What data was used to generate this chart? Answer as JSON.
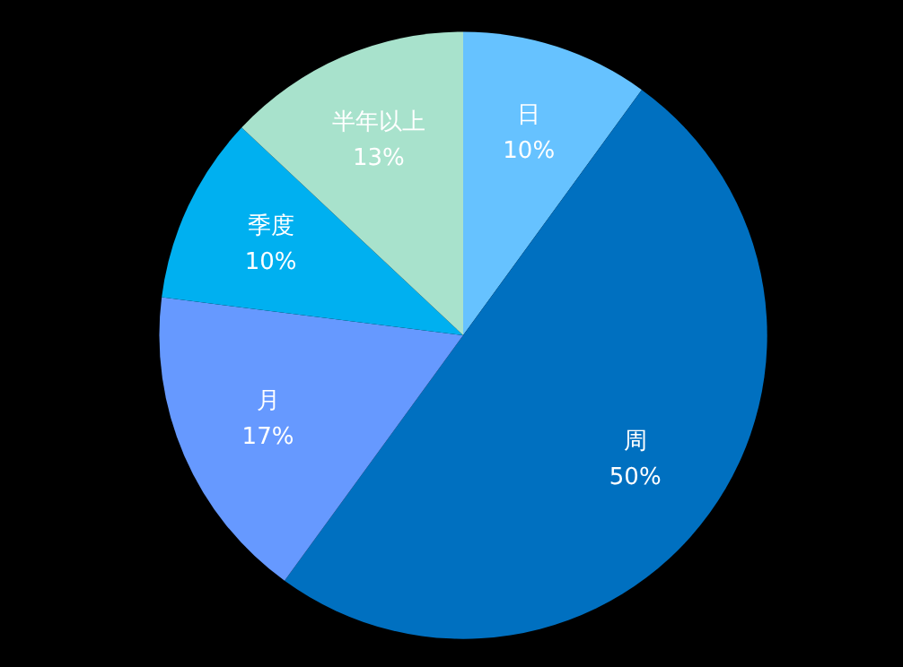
{
  "chart_data": {
    "type": "pie",
    "categories": [
      "日",
      "周",
      "月",
      "季度",
      "半年以上"
    ],
    "values": [
      10,
      50,
      17,
      10,
      13
    ],
    "value_labels": [
      "10%",
      "50%",
      "17%",
      "10%",
      "13%"
    ],
    "colors": [
      "#66c2ff",
      "#0070c0",
      "#6699ff",
      "#00b0f0",
      "#a8e2cc"
    ],
    "legend": false
  }
}
